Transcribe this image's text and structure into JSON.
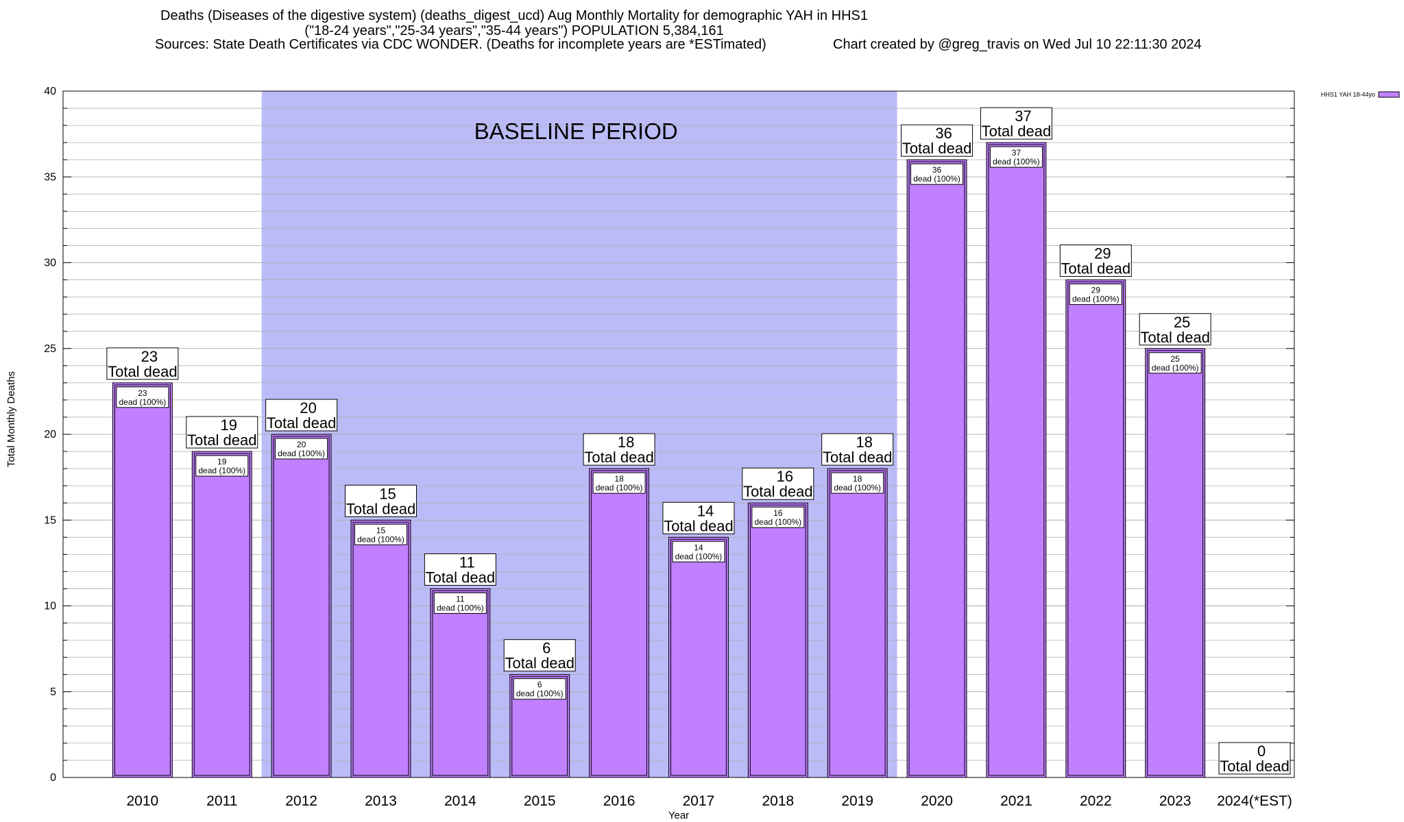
{
  "header": {
    "title_line1": "Deaths (Diseases of the digestive system) (deaths_digest_ucd) Aug Monthly Mortality for demographic YAH in HHS1",
    "title_line2": "(\"18-24 years\",\"25-34 years\",\"35-44 years\") POPULATION 5,384,161",
    "sources": "Sources: State Death Certificates via CDC WONDER. (Deaths for incomplete years are *ESTimated)",
    "credit": "Chart created by @greg_travis on Wed Jul 10 22:11:30 2024"
  },
  "colors": {
    "bar": "#c080ff",
    "baseline_band": "#bbbbf7",
    "grid": "#b0b0b0"
  },
  "chart_data": {
    "type": "bar",
    "categories": [
      "2010",
      "2011",
      "2012",
      "2013",
      "2014",
      "2015",
      "2016",
      "2017",
      "2018",
      "2019",
      "2020",
      "2021",
      "2022",
      "2023",
      "2024(*EST)"
    ],
    "series": [
      {
        "name": "HHS1 YAH 18-44yo",
        "values": [
          23,
          19,
          20,
          15,
          11,
          6,
          18,
          14,
          16,
          18,
          36,
          37,
          29,
          25,
          0
        ]
      }
    ],
    "value_label_suffix_big": "Total dead",
    "value_label_suffix_small": "dead (100%)",
    "xlabel": "Year",
    "ylabel": "Total Monthly Deaths",
    "ylim": [
      0,
      40
    ],
    "yticks": [
      0,
      5,
      10,
      15,
      20,
      25,
      30,
      35,
      40
    ],
    "grid": true,
    "legend_position": "top-right",
    "annotation": {
      "text": "BASELINE PERIOD",
      "from": "2012",
      "to": "2019"
    }
  }
}
